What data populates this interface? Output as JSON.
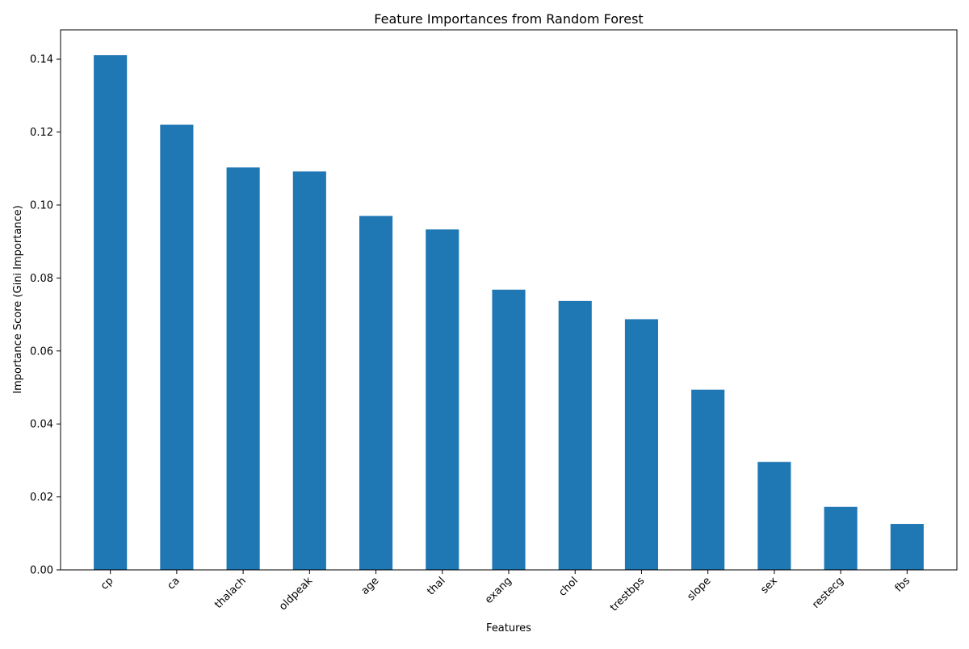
{
  "chart_data": {
    "type": "bar",
    "title": "Feature Importances from Random Forest",
    "xlabel": "Features",
    "ylabel": "Importance Score (Gini Importance)",
    "categories": [
      "cp",
      "ca",
      "thalach",
      "oldpeak",
      "age",
      "thal",
      "exang",
      "chol",
      "trestbps",
      "slope",
      "sex",
      "restecg",
      "fbs"
    ],
    "values": [
      0.1411,
      0.122,
      0.1103,
      0.1092,
      0.097,
      0.0933,
      0.0768,
      0.0737,
      0.0687,
      0.0494,
      0.0296,
      0.0173,
      0.0126
    ],
    "ylim": [
      0,
      0.148
    ],
    "yticks": [
      0.0,
      0.02,
      0.04,
      0.06,
      0.08,
      0.1,
      0.12,
      0.14
    ],
    "ytick_labels": [
      "0.00",
      "0.02",
      "0.04",
      "0.06",
      "0.08",
      "0.10",
      "0.12",
      "0.14"
    ],
    "bar_color": "#1f77b4",
    "grid": false,
    "legend": "none"
  }
}
